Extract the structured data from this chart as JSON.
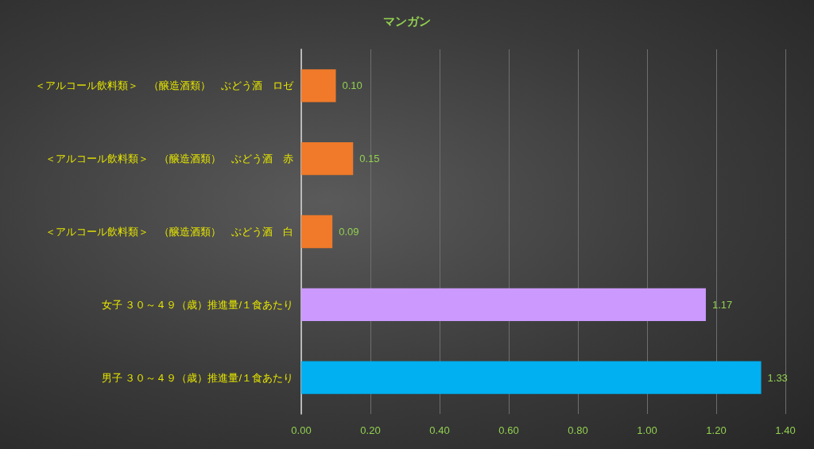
{
  "chart_data": {
    "type": "bar",
    "orientation": "horizontal",
    "title": "マンガン",
    "categories": [
      "＜アルコール飲料類＞　（醸造酒類）　ぶどう酒　ロゼ",
      "＜アルコール飲料類＞　（醸造酒類）　ぶどう酒　赤",
      "＜アルコール飲料類＞　（醸造酒類）　ぶどう酒　白",
      "女子 ３０～４９（歳）推進量/１食あたり",
      "男子 ３０～４９（歳）推進量/１食あたり"
    ],
    "values": [
      0.1,
      0.15,
      0.09,
      1.17,
      1.33
    ],
    "value_labels": [
      "0.10",
      "0.15",
      "0.09",
      "1.17",
      "1.33"
    ],
    "colors": [
      "#f07a2a",
      "#f07a2a",
      "#f07a2a",
      "#cc99ff",
      "#00b0f0"
    ],
    "xlim": [
      0,
      1.4
    ],
    "xticks": [
      {
        "value": 0,
        "label": "0.00"
      },
      {
        "value": 0.2,
        "label": "0.20"
      },
      {
        "value": 0.4,
        "label": "0.40"
      },
      {
        "value": 0.6,
        "label": "0.60"
      },
      {
        "value": 0.8,
        "label": "0.80"
      },
      {
        "value": 1,
        "label": "1.00"
      },
      {
        "value": 1.2,
        "label": "1.20"
      },
      {
        "value": 1.4,
        "label": "1.40"
      }
    ],
    "grid": "x"
  }
}
